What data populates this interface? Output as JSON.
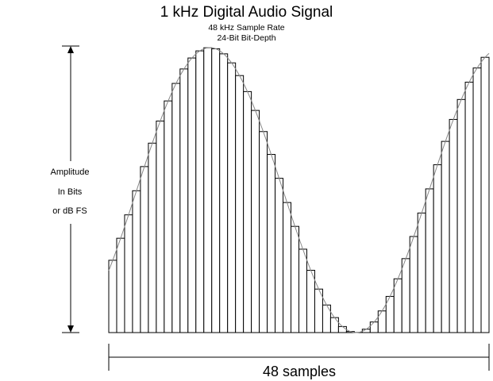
{
  "title": "1 kHz Digital Audio Signal",
  "subtitle_lines": [
    "48 kHz Sample Rate",
    "24-Bit Bit-Depth"
  ],
  "y_axis_label_lines": [
    "Amplitude",
    "In Bits",
    "or dB FS"
  ],
  "x_axis_label": "48 samples",
  "signal": {
    "frequency_hz": 1000,
    "sample_rate_hz": 48000,
    "bit_depth": 24,
    "sample_count": 48,
    "cycles_shown": 1.3
  },
  "colors": {
    "bars": "#000000",
    "sine_curve": "#888888",
    "background": "#ffffff"
  }
}
